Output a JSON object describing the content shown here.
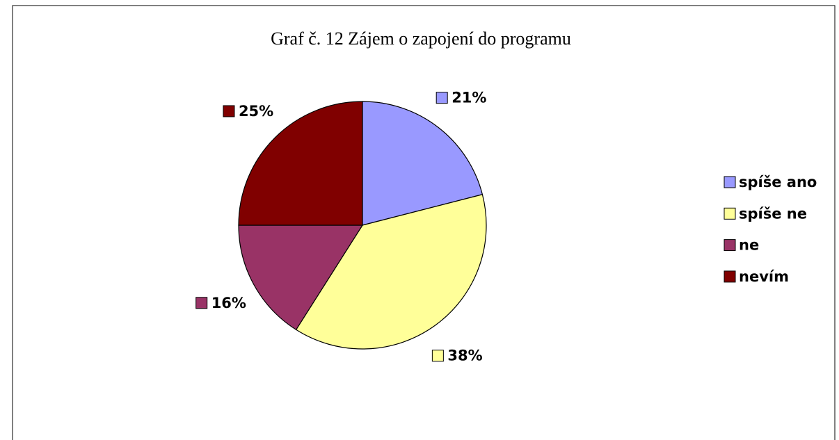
{
  "chart_data": {
    "type": "pie",
    "title": "Graf č. 12 Zájem o zapojení do programu",
    "categories": [
      "spíše ano",
      "spíše ne",
      "ne",
      "nevím"
    ],
    "values": [
      21,
      38,
      16,
      25
    ],
    "value_labels": [
      "21%",
      "38%",
      "16%",
      "25%"
    ],
    "colors": [
      "#9999ff",
      "#ffff99",
      "#993366",
      "#800000"
    ],
    "legend": "right"
  }
}
